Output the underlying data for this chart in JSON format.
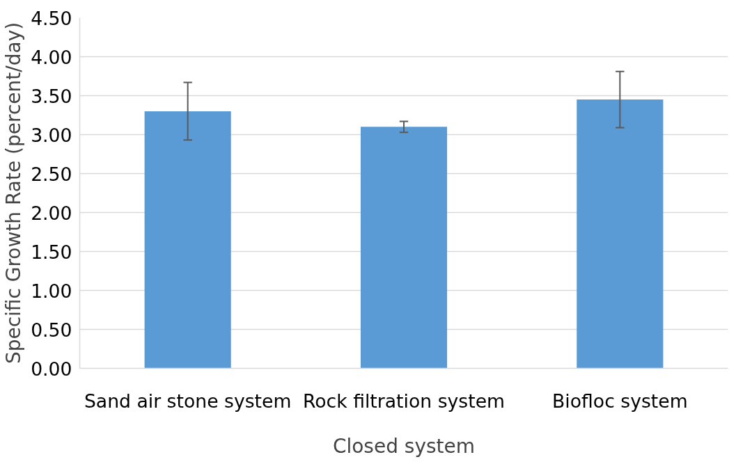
{
  "chart_data": {
    "type": "bar",
    "xlabel": "Closed system",
    "ylabel": "Specific Growth Rate (percent/day)",
    "categories": [
      "Sand air stone system",
      "Rock filtration system",
      "Biofloc system"
    ],
    "values": [
      3.3,
      3.1,
      3.45
    ],
    "errors": [
      0.37,
      0.07,
      0.36
    ],
    "color": "#5b9bd5",
    "ylim": [
      0,
      4.5
    ],
    "yticks": [
      {
        "value": 0,
        "label": "0.00"
      },
      {
        "value": 0.5,
        "label": "0.50"
      },
      {
        "value": 1,
        "label": "1.00"
      },
      {
        "value": 1.5,
        "label": "1.50"
      },
      {
        "value": 2,
        "label": "2.00"
      },
      {
        "value": 2.5,
        "label": "2.50"
      },
      {
        "value": 3,
        "label": "3.00"
      },
      {
        "value": 3.5,
        "label": "3.50"
      },
      {
        "value": 4,
        "label": "4.00"
      },
      {
        "value": 4.5,
        "label": "4.50"
      }
    ],
    "grid": "y"
  }
}
